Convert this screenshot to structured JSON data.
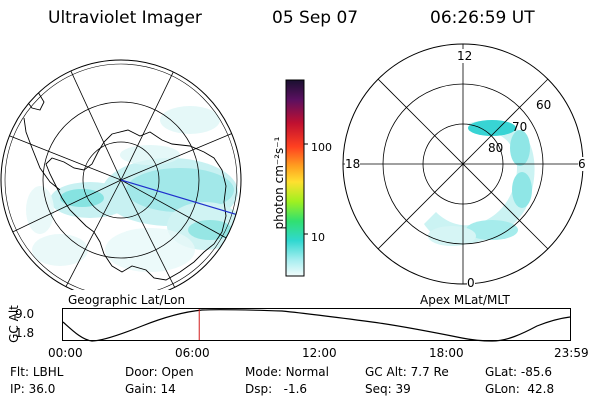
{
  "header": {
    "instrument": "Ultraviolet Imager",
    "date": "05 Sep 07",
    "time": "06:26:59 UT"
  },
  "colorbar": {
    "unit_label": "photon cm⁻²s⁻¹",
    "tick_labels": [
      "100",
      "10"
    ]
  },
  "right_panel": {
    "mlt_labels": {
      "top": "12",
      "left": "18",
      "right": "6",
      "bottom": "0"
    },
    "mlat_labels": [
      "60",
      "70",
      "80"
    ]
  },
  "panel_labels": {
    "left": "Geographic Lat/Lon",
    "right": "Apex MLat/MLT"
  },
  "timeline": {
    "ylabel": "GC Alt",
    "y_ticks": [
      "9.0",
      "1.8"
    ],
    "x_ticks": [
      "00:00",
      "06:00",
      "12:00",
      "18:00",
      "23:59"
    ],
    "current_fraction": 0.2687
  },
  "info": {
    "flt_label": "Flt:",
    "flt_value": "LBHL",
    "ip_label": "IP:",
    "ip_value": "36.0",
    "door_label": "Door:",
    "door_value": "Open",
    "gain_label": "Gain:",
    "gain_value": "14",
    "mode_label": "Mode:",
    "mode_value": "Normal",
    "dsp_label": "Dsp:",
    "dsp_value": "-1.6",
    "gcalt_label": "GC Alt:",
    "gcalt_value": "7.7 Re",
    "seq_label": "Seq:",
    "seq_value": "39",
    "glat_label": "GLat:",
    "glat_value": "-85.6",
    "glon_label": "GLon:",
    "glon_value": "42.8"
  },
  "colors": {
    "accent_red": "#d11a1a",
    "track_blue": "#1f2fcc",
    "aurora_cyan": "#3ad6d6"
  }
}
